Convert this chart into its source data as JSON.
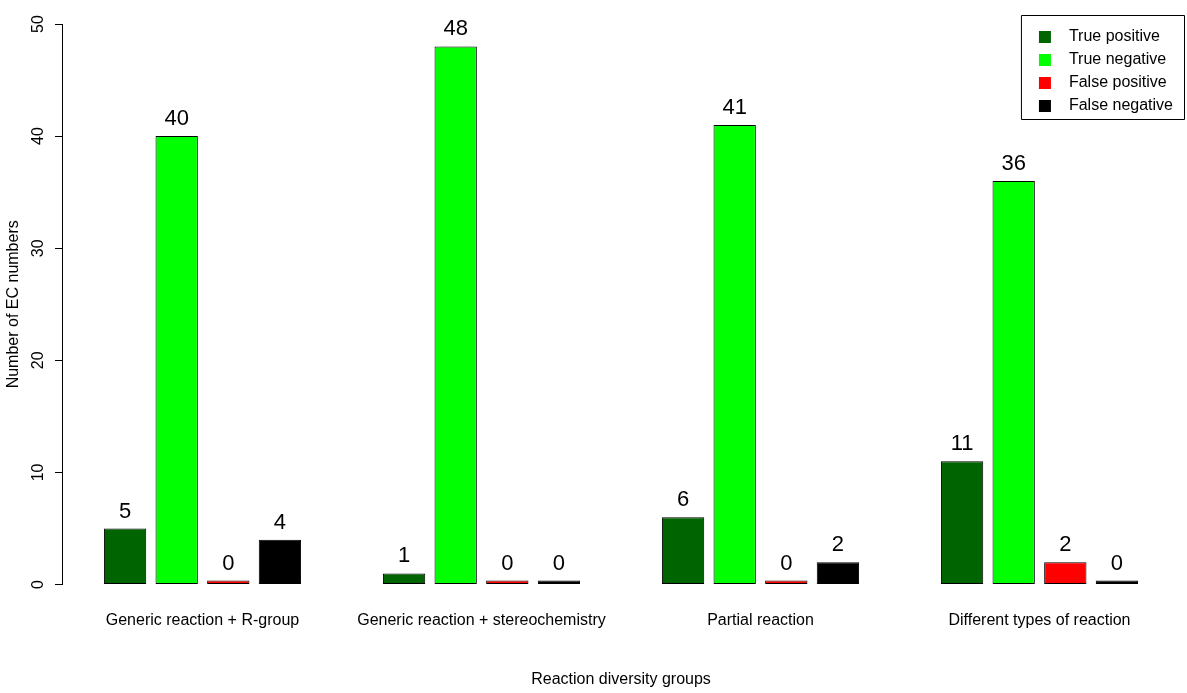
{
  "chart_data": {
    "type": "bar",
    "xlabel": "Reaction diversity groups",
    "ylabel": "Number of EC numbers",
    "categories": [
      "Generic reaction + R-group",
      "Generic reaction + stereochemistry",
      "Partial reaction",
      "Different types of reaction"
    ],
    "series": [
      {
        "name": "True positive",
        "color": "#006400",
        "values": [
          5,
          1,
          6,
          11
        ]
      },
      {
        "name": "True negative",
        "color": "#00ff00",
        "values": [
          40,
          48,
          41,
          36
        ]
      },
      {
        "name": "False positive",
        "color": "#ff0000",
        "values": [
          0,
          0,
          0,
          2
        ]
      },
      {
        "name": "False negative",
        "color": "#000000",
        "values": [
          4,
          0,
          2,
          0
        ]
      }
    ],
    "ylim": [
      0,
      50
    ],
    "yticks": [
      0,
      10,
      20,
      30,
      40,
      50
    ],
    "grid": false,
    "legend": "top right",
    "data_labels": true
  }
}
